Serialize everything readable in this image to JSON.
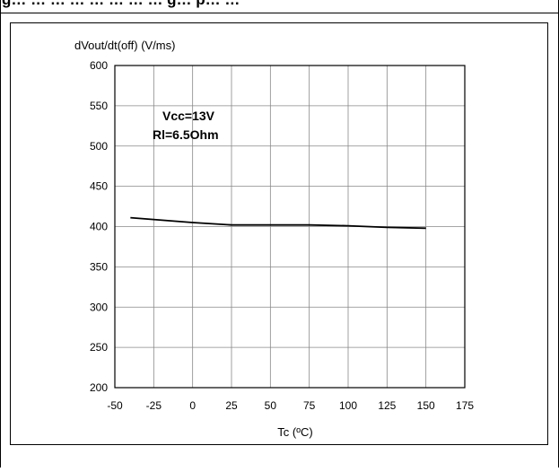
{
  "page": {
    "heading": "g… … … … … … … … g… p… …"
  },
  "chart_data": {
    "type": "line",
    "title": "",
    "ylabel": "dVout/dt(off) (V/ms)",
    "xlabel": "Tc (ºC)",
    "xlim": [
      -50,
      175
    ],
    "ylim": [
      200,
      600
    ],
    "xticks": [
      -50,
      -25,
      0,
      25,
      50,
      75,
      100,
      125,
      150,
      175
    ],
    "yticks": [
      200,
      250,
      300,
      350,
      400,
      450,
      500,
      550,
      600
    ],
    "xtick_labels": [
      "-50",
      "-25",
      "0",
      "25",
      "50",
      "75",
      "100",
      "125",
      "150",
      "175"
    ],
    "ytick_labels": [
      "200",
      "250",
      "300",
      "350",
      "400",
      "450",
      "500",
      "550",
      "600"
    ],
    "grid": true,
    "annotations": [
      "Vcc=13V",
      "Rl=6.5Ohm"
    ],
    "series": [
      {
        "x": [
          -40,
          0,
          25,
          75,
          100,
          125,
          150
        ],
        "y": [
          411,
          405,
          402,
          402,
          401,
          399,
          398
        ],
        "color": "#000000"
      }
    ]
  }
}
